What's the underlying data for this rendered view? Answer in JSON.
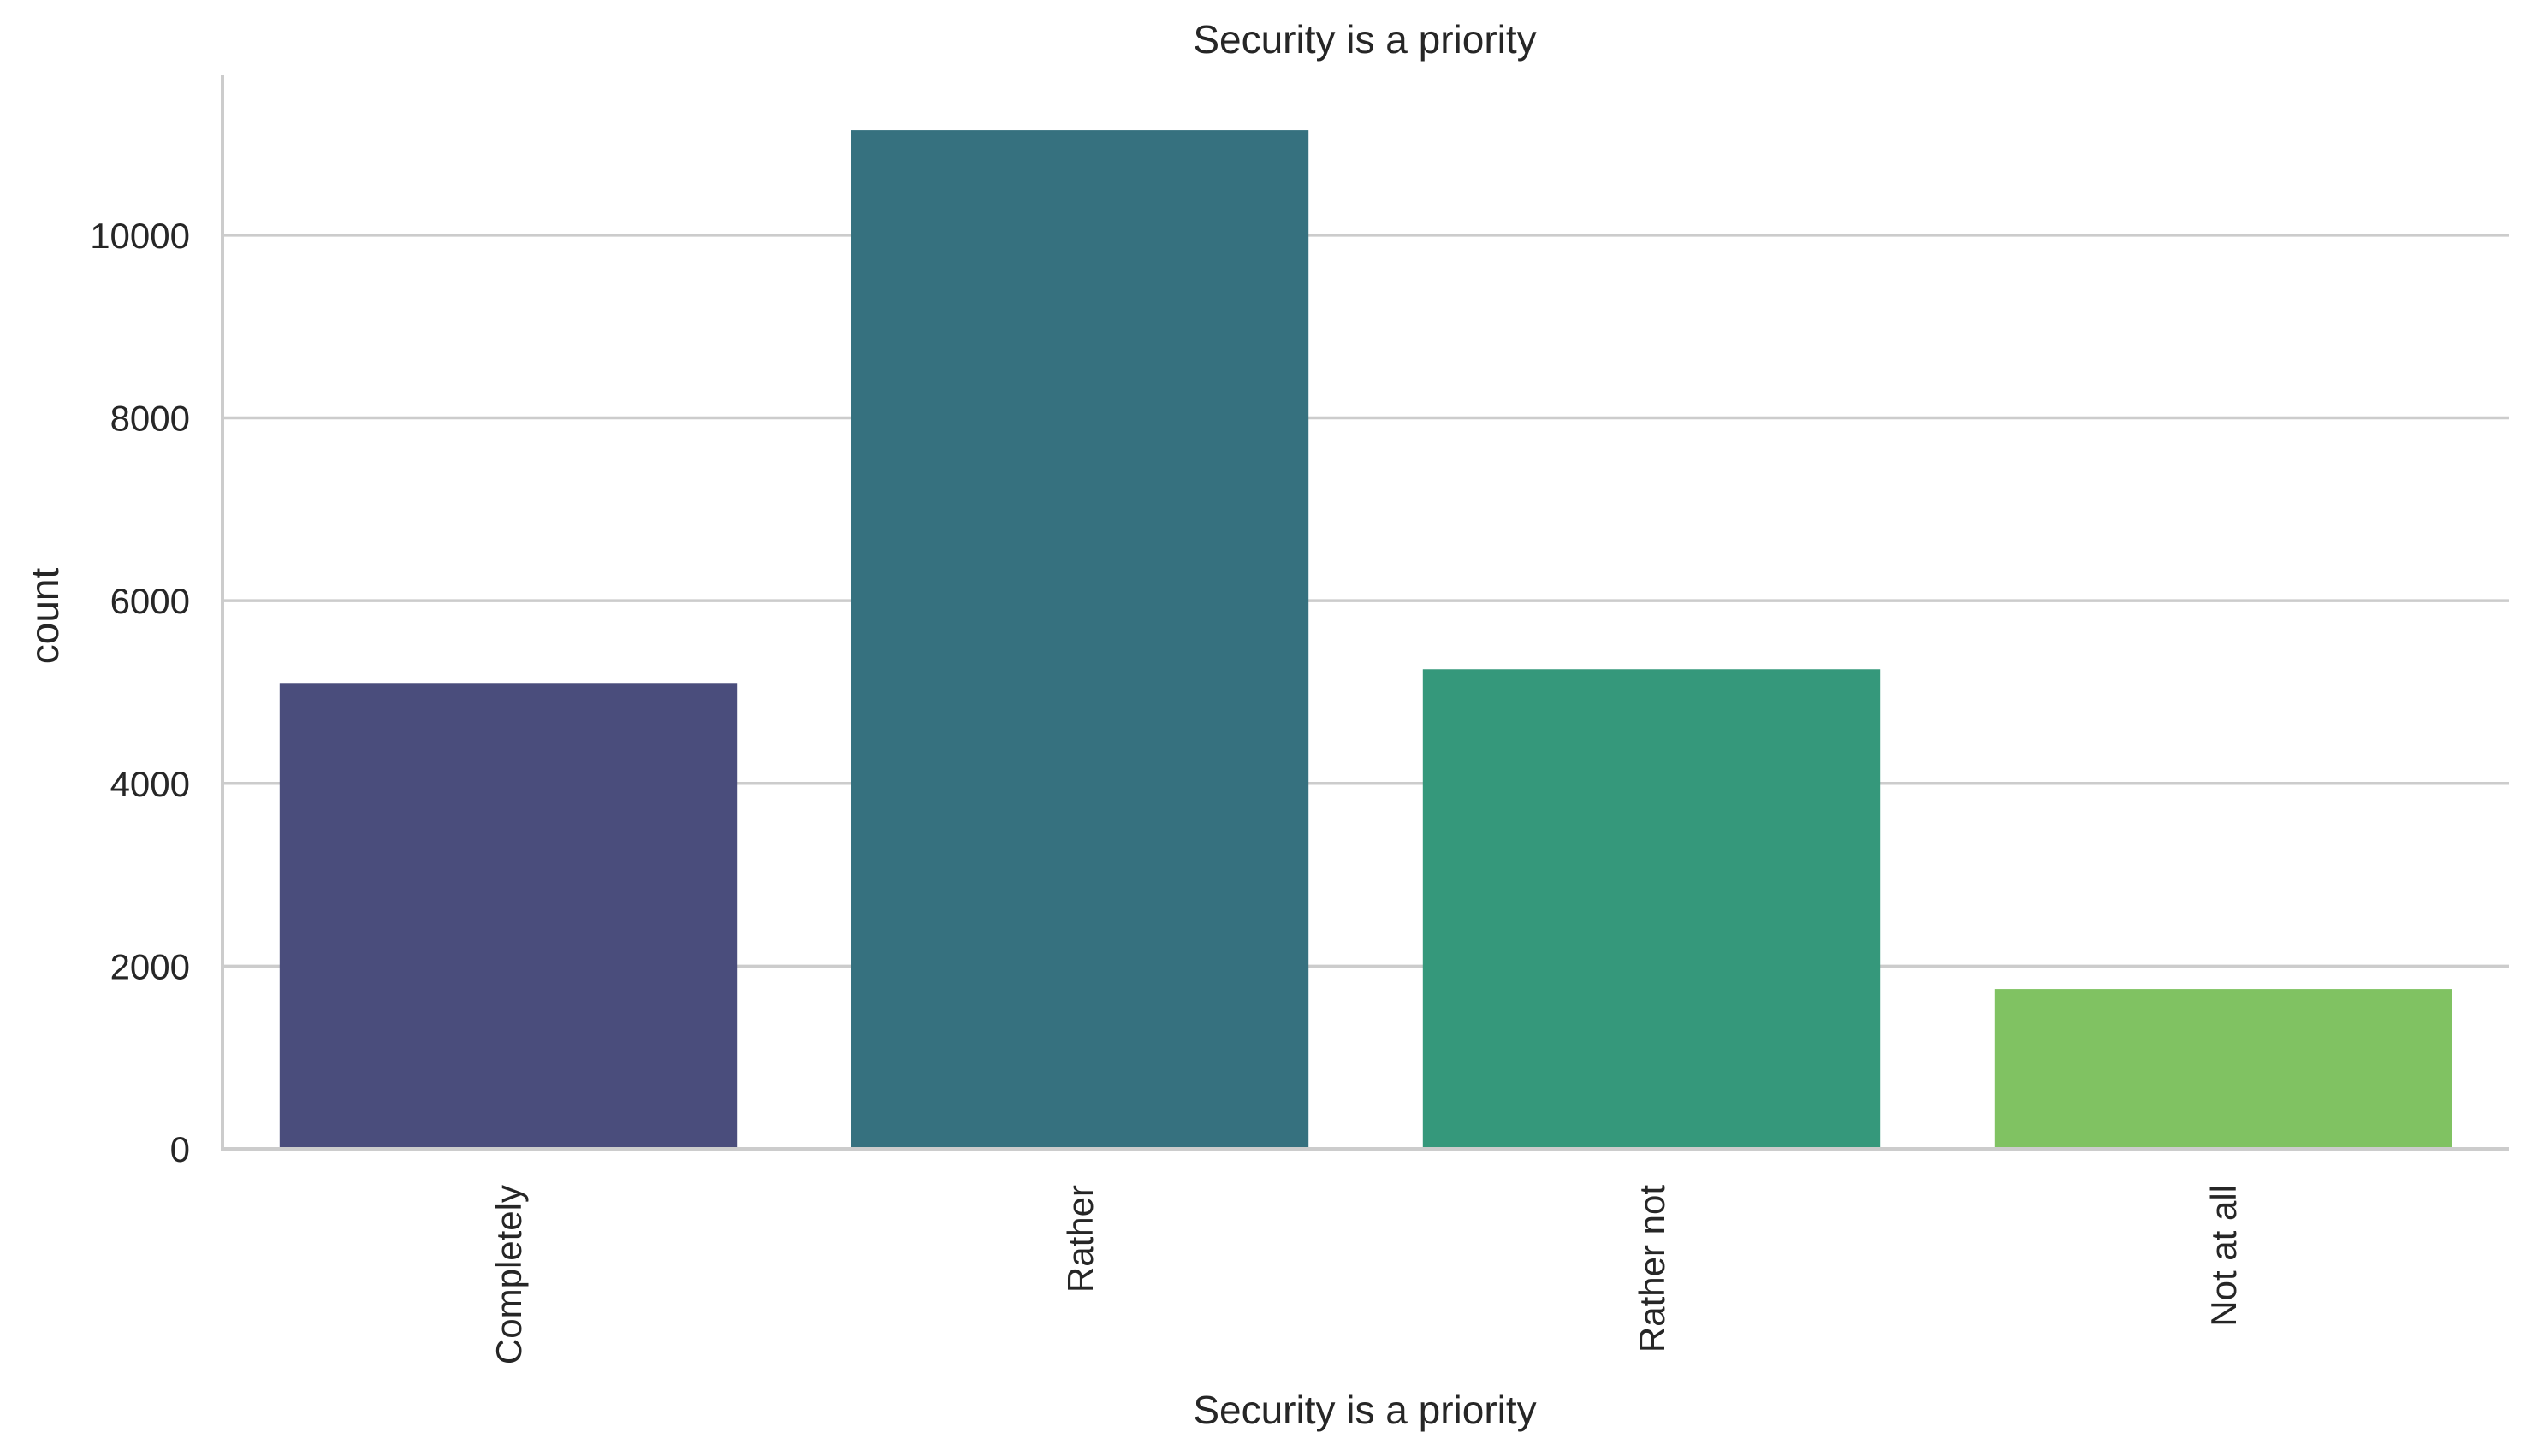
{
  "chart_data": {
    "type": "bar",
    "title": "Security is a priority",
    "xlabel": "Security is a priority",
    "ylabel": "count",
    "categories": [
      "Completely",
      "Rather",
      "Rather not",
      "Not at all"
    ],
    "values": [
      5100,
      11150,
      5250,
      1750
    ],
    "colors": [
      "#4a4d7c",
      "#36717f",
      "#35987b",
      "#80c262"
    ],
    "ylim": [
      0,
      11750
    ],
    "yticks": [
      0,
      2000,
      4000,
      6000,
      8000,
      10000
    ],
    "ytick_labels": [
      "0",
      "2000",
      "4000",
      "6000",
      "8000",
      "10000"
    ],
    "grid": "horizontal",
    "legend": "none",
    "xtick_rotation": "vertical"
  }
}
